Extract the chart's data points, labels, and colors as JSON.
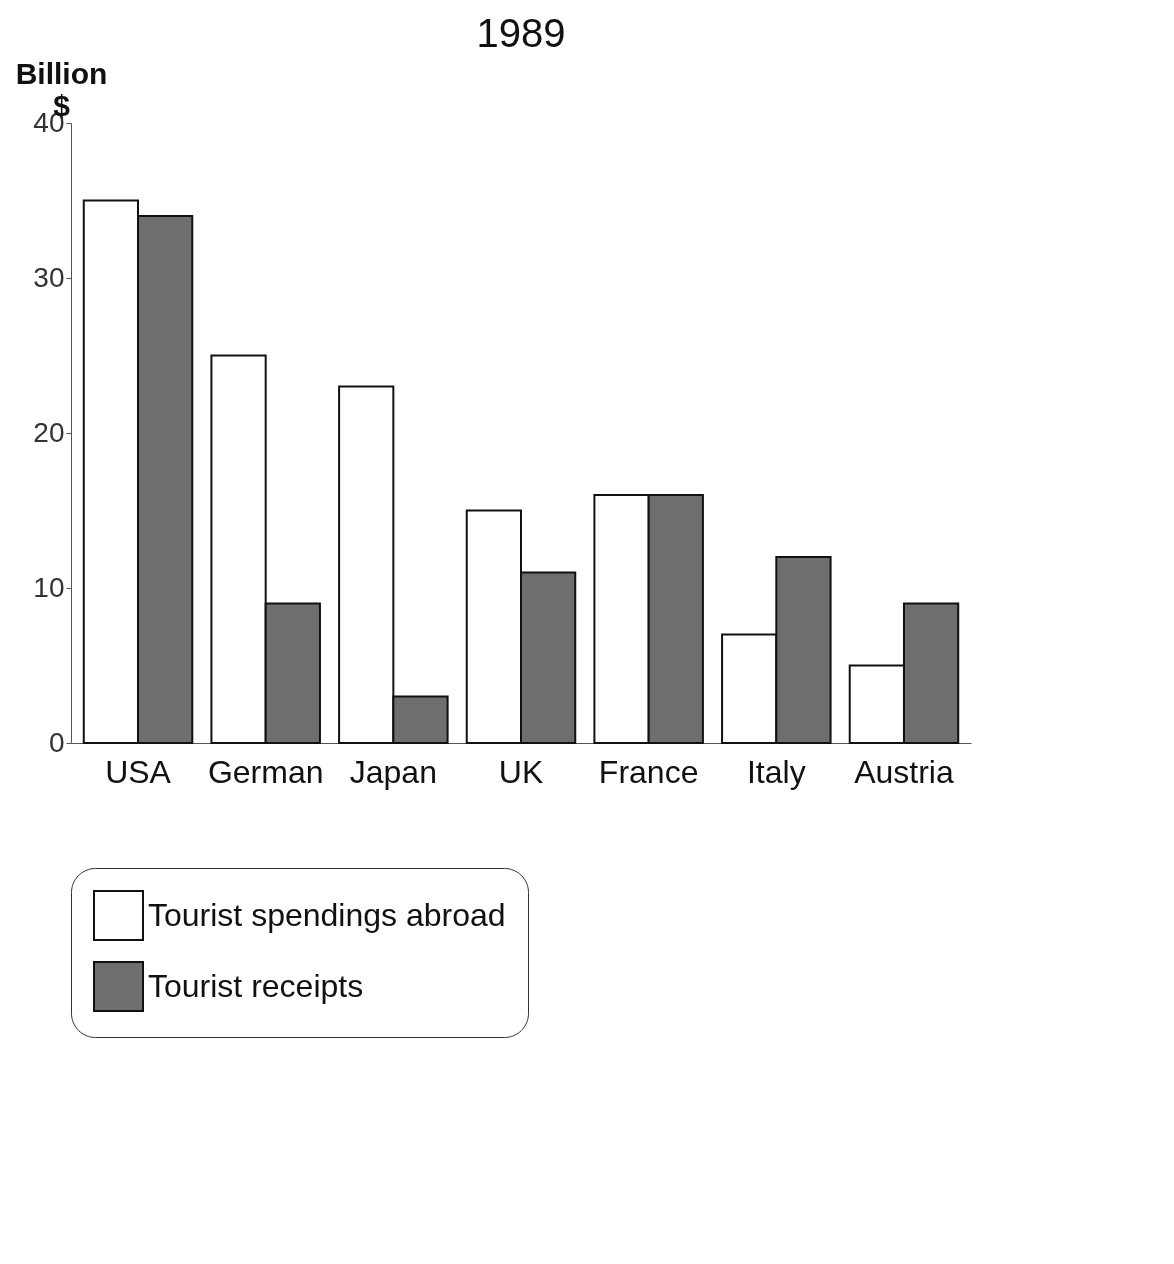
{
  "chart_data": {
    "type": "bar",
    "title": "1989",
    "ylabel": "Billion $",
    "categories": [
      "USA",
      "German",
      "Japan",
      "UK",
      "France",
      "Italy",
      "Austria"
    ],
    "series": [
      {
        "name": "Tourist spendings abroad",
        "color": "#ffffff",
        "values": [
          35,
          25,
          23,
          15,
          16,
          7,
          5
        ]
      },
      {
        "name": "Tourist receipts",
        "color": "#6e6e6e",
        "values": [
          34,
          9,
          3,
          11,
          16,
          12,
          9
        ]
      }
    ],
    "ylim": [
      0,
      40
    ],
    "yticks": [
      0,
      10,
      20,
      30,
      40
    ],
    "grid": false,
    "legend": "bottom"
  }
}
